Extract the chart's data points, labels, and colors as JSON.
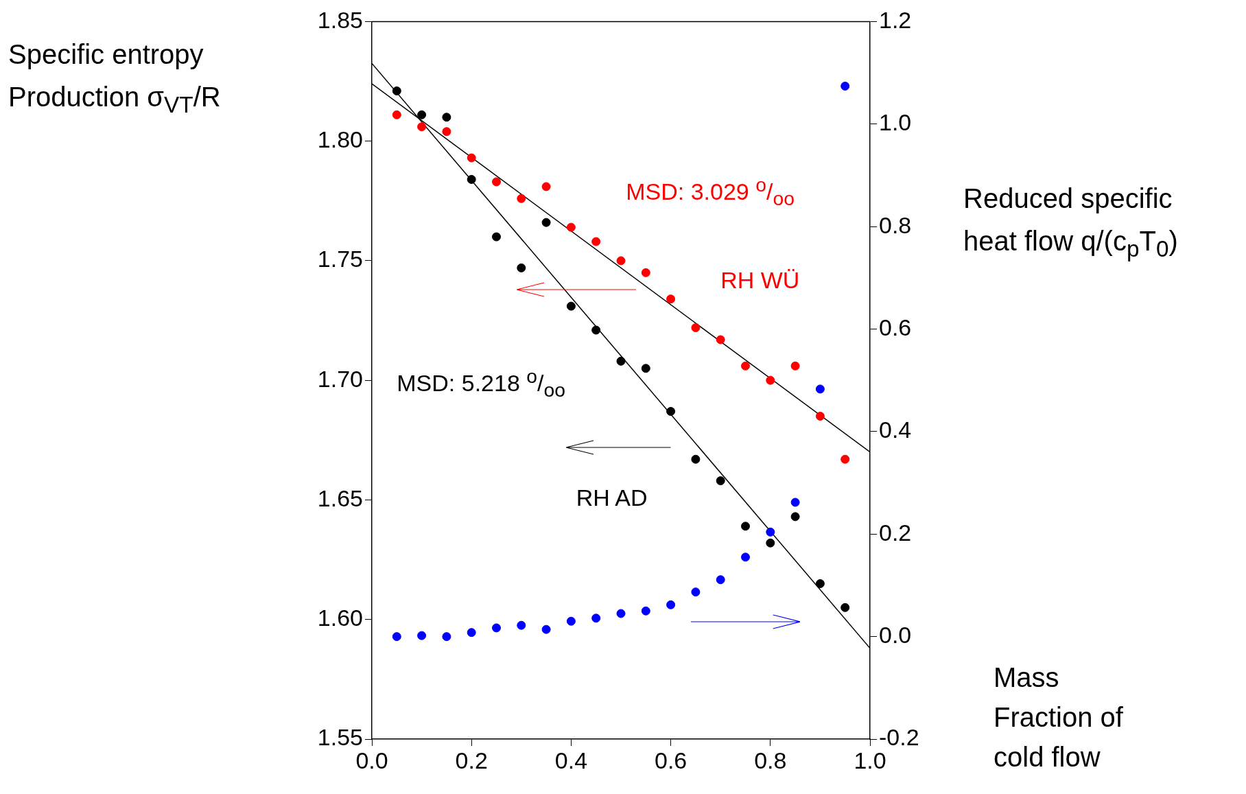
{
  "chart_data": {
    "type": "scatter",
    "xlabel": "Mass Fraction of cold flow",
    "ylabel": "Specific entropy Production σ$_{VT}$/R",
    "y2label": "Reduced specific heat flow q/(c$_{p}$T$_{0}$)",
    "annotations": [
      "MSD: 3.029 $^{o}$/$_{oo}$",
      "MSD: 5.218 $^{o}$/$_{oo}$"
    ],
    "xlim": [
      0,
      1
    ],
    "xticks": [
      {
        "value": 0,
        "label": "0.0"
      },
      {
        "value": 0.2,
        "label": "0.2"
      },
      {
        "value": 0.4,
        "label": "0.4"
      },
      {
        "value": 0.6,
        "label": "0.6"
      },
      {
        "value": 0.8,
        "label": "0.8"
      },
      {
        "value": 1,
        "label": "1.0"
      }
    ],
    "ylim": [
      1.55,
      1.85
    ],
    "yticks": [
      1.55,
      {
        "value": 1.6,
        "label": "1.60"
      },
      1.65,
      {
        "value": 1.7,
        "label": "1.70"
      },
      1.75,
      {
        "value": 1.8,
        "label": "1.80"
      },
      1.85
    ],
    "y2lim": [
      -0.2,
      1.2
    ],
    "y2ticks": [
      -0.2,
      {
        "value": 0,
        "label": "0.0"
      },
      0.2,
      0.4,
      0.6,
      0.8,
      {
        "value": 1,
        "label": "1.0"
      },
      1.2
    ],
    "grid": false,
    "legend": false,
    "marker": "circle",
    "series": [
      {
        "name": "RH AD",
        "type": "scatter",
        "color": "#000000",
        "x": [
          0.05,
          0.1,
          0.15,
          0.2,
          0.25,
          0.3,
          0.35,
          0.4,
          0.45,
          0.5,
          0.55,
          0.6,
          0.65,
          0.7,
          0.75,
          0.8,
          0.85,
          0.9,
          0.95
        ],
        "values": [
          1.821,
          1.811,
          1.81,
          1.784,
          1.76,
          1.747,
          1.766,
          1.731,
          1.721,
          1.708,
          1.705,
          1.687,
          1.667,
          1.658,
          1.639,
          1.632,
          1.643,
          1.615,
          1.605
        ]
      },
      {
        "name": "RH WÜ",
        "type": "scatter",
        "color": "#ff0000",
        "x": [
          0.05,
          0.1,
          0.15,
          0.2,
          0.25,
          0.3,
          0.35,
          0.4,
          0.45,
          0.5,
          0.55,
          0.6,
          0.65,
          0.7,
          0.75,
          0.8,
          0.85,
          0.9,
          0.95
        ],
        "values": [
          1.811,
          1.806,
          1.804,
          1.793,
          1.783,
          1.776,
          1.781,
          1.764,
          1.758,
          1.75,
          1.745,
          1.734,
          1.722,
          1.717,
          1.706,
          1.7,
          1.706,
          1.685,
          1.667
        ]
      },
      {
        "type": "scatter",
        "color": "#0000ff",
        "axis": "y2",
        "x": [
          0.05,
          0.1,
          0.15,
          0.2,
          0.25,
          0.3,
          0.35,
          0.4,
          0.45,
          0.5,
          0.55,
          0.6,
          0.65,
          0.7,
          0.75,
          0.8,
          0.85,
          0.9,
          0.95
        ],
        "values": [
          0.0,
          0.002,
          0.0,
          0.008,
          0.017,
          0.022,
          0.014,
          0.03,
          0.036,
          0.045,
          0.05,
          0.062,
          0.087,
          0.111,
          0.155,
          0.204,
          0.262,
          0.483,
          1.074
        ]
      },
      {
        "type": "line",
        "color": "#000000",
        "marker": "none",
        "line_style": "solid",
        "x": [
          0,
          1
        ],
        "values": [
          1.8325,
          1.588
        ]
      },
      {
        "type": "line",
        "color": "#000000",
        "marker": "none",
        "line_style": "solid",
        "x": [
          0,
          1
        ],
        "values": [
          1.824,
          1.67
        ]
      }
    ]
  }
}
